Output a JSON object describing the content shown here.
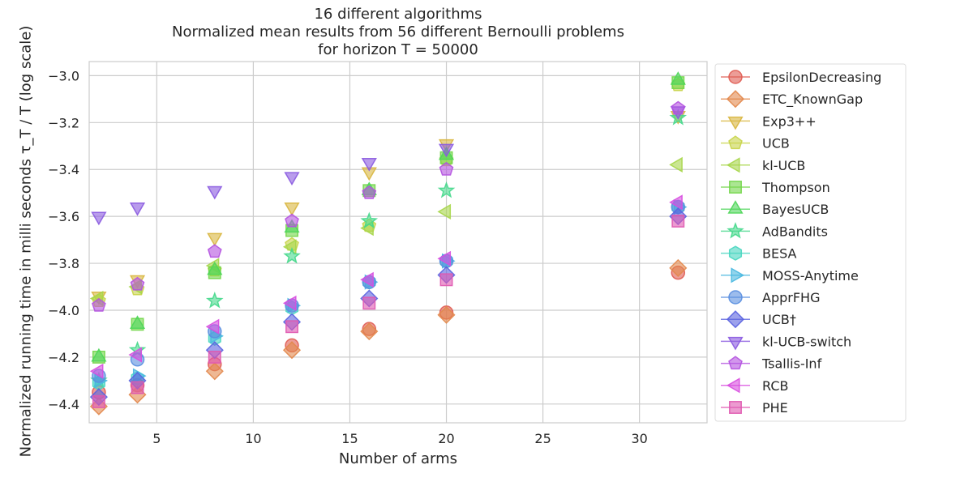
{
  "chart_data": {
    "type": "scatter",
    "title_lines": [
      "16 different algorithms",
      "Normalized mean results from 56 different Bernoulli problems",
      "for horizon T = 50000"
    ],
    "xlabel": "Number of arms",
    "ylabel": "Normalized running time in milli seconds τ_T / T (log scale)",
    "xlim": [
      1.5,
      33.5
    ],
    "ylim": [
      -4.48,
      -2.94
    ],
    "xticks": [
      5,
      10,
      15,
      20,
      25,
      30
    ],
    "yticks": [
      -3.0,
      -3.2,
      -3.4,
      -3.6,
      -3.8,
      -4.0,
      -4.2,
      -4.4
    ],
    "grid": true,
    "legend_position": "outside-right",
    "x": [
      2,
      4,
      8,
      12,
      16,
      20,
      32
    ],
    "series": [
      {
        "name": "EpsilonDecreasing",
        "marker": "circle",
        "color": "#e05c52",
        "values": [
          -4.35,
          -4.32,
          -4.23,
          -4.15,
          -4.08,
          -4.01,
          -3.84
        ]
      },
      {
        "name": "ETC_KnownGap",
        "marker": "diamond",
        "color": "#e2884c",
        "values": [
          -4.41,
          -4.36,
          -4.26,
          -4.17,
          -4.09,
          -4.02,
          -3.82
        ]
      },
      {
        "name": "Exp3++",
        "marker": "triangle-down",
        "color": "#d8b63f",
        "values": [
          -3.94,
          -3.87,
          -3.69,
          -3.56,
          -3.41,
          -3.29,
          -3.17
        ]
      },
      {
        "name": "UCB",
        "marker": "pentagon",
        "color": "#c8d449",
        "values": [
          -3.96,
          -3.91,
          -3.83,
          -3.72,
          -3.64,
          -3.36,
          -3.04
        ]
      },
      {
        "name": "kl-UCB",
        "marker": "triangle-left",
        "color": "#a7d64a",
        "values": [
          -3.95,
          -3.9,
          -3.81,
          -3.73,
          -3.65,
          -3.58,
          -3.38
        ]
      },
      {
        "name": "Thompson",
        "marker": "square",
        "color": "#73d64a",
        "values": [
          -4.2,
          -4.06,
          -3.84,
          -3.66,
          -3.49,
          -3.35,
          -3.03
        ]
      },
      {
        "name": "BayesUCB",
        "marker": "triangle-up",
        "color": "#4fd65a",
        "values": [
          -4.2,
          -4.06,
          -3.83,
          -3.65,
          -3.49,
          -3.34,
          -3.02
        ]
      },
      {
        "name": "AdBandits",
        "marker": "star",
        "color": "#46d88c",
        "values": [
          -4.3,
          -4.17,
          -3.96,
          -3.77,
          -3.62,
          -3.49,
          -3.18
        ]
      },
      {
        "name": "BESA",
        "marker": "hexagon",
        "color": "#48d6c0",
        "values": [
          -4.31,
          -4.29,
          -4.12,
          -3.99,
          -3.88,
          -3.79,
          -3.56
        ]
      },
      {
        "name": "MOSS-Anytime",
        "marker": "triangle-right",
        "color": "#49b8e0",
        "values": [
          -4.3,
          -4.28,
          -4.11,
          -3.98,
          -3.88,
          -3.79,
          -3.56
        ]
      },
      {
        "name": "ApprFHG",
        "marker": "circle",
        "color": "#5a8fe0",
        "values": [
          -4.28,
          -4.21,
          -4.09,
          -3.98,
          -3.88,
          -3.79,
          -3.56
        ]
      },
      {
        "name": "UCB†",
        "marker": "diamond",
        "color": "#5a63e0",
        "values": [
          -4.37,
          -4.3,
          -4.17,
          -4.05,
          -3.95,
          -3.85,
          -3.6
        ]
      },
      {
        "name": "kl-UCB-switch",
        "marker": "triangle-down",
        "color": "#8a5ae0",
        "values": [
          -3.6,
          -3.56,
          -3.49,
          -3.43,
          -3.37,
          -3.31,
          -3.15
        ]
      },
      {
        "name": "Tsallis-Inf",
        "marker": "pentagon",
        "color": "#b452e0",
        "values": [
          -3.98,
          -3.89,
          -3.75,
          -3.62,
          -3.5,
          -3.4,
          -3.14
        ]
      },
      {
        "name": "RCB",
        "marker": "triangle-left",
        "color": "#d84ee0",
        "values": [
          -4.26,
          -4.19,
          -4.07,
          -3.97,
          -3.87,
          -3.78,
          -3.54
        ]
      },
      {
        "name": "PHE",
        "marker": "square",
        "color": "#e058b0",
        "values": [
          -4.39,
          -4.33,
          -4.2,
          -4.07,
          -3.97,
          -3.87,
          -3.62
        ]
      }
    ]
  }
}
